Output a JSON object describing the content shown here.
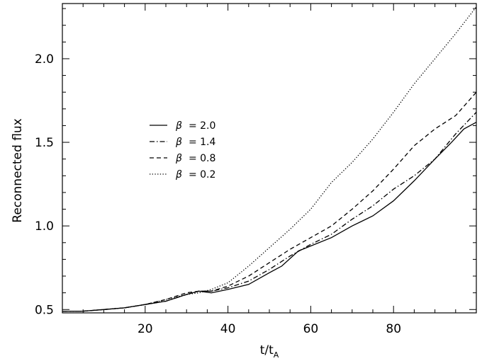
{
  "chart_data": {
    "type": "line",
    "title": "",
    "xlabel": "t/t_A",
    "xlabel_main": "t/t",
    "xlabel_sub": "A",
    "ylabel": "Reconnected flux",
    "xlim": [
      0,
      100
    ],
    "ylim": [
      0.48,
      2.33
    ],
    "xticks": [
      20,
      40,
      60,
      80
    ],
    "yticks": [
      0.5,
      1.0,
      1.5,
      2.0
    ],
    "xtick_labels": [
      "20",
      "40",
      "60",
      "80"
    ],
    "ytick_labels": [
      "0.5",
      "1.0",
      "1.5",
      "2.0"
    ],
    "grid": false,
    "legend_position": "middle-left",
    "series": [
      {
        "name": "β = 2.0",
        "label_symbol": "β",
        "label_value": "= 2.0",
        "style": "solid",
        "points": [
          [
            0,
            0.49
          ],
          [
            5,
            0.49
          ],
          [
            10,
            0.5
          ],
          [
            15,
            0.51
          ],
          [
            20,
            0.53
          ],
          [
            25,
            0.55
          ],
          [
            30,
            0.59
          ],
          [
            33,
            0.61
          ],
          [
            36,
            0.6
          ],
          [
            40,
            0.62
          ],
          [
            45,
            0.65
          ],
          [
            50,
            0.72
          ],
          [
            53,
            0.76
          ],
          [
            57,
            0.85
          ],
          [
            60,
            0.88
          ],
          [
            65,
            0.93
          ],
          [
            70,
            1.0
          ],
          [
            75,
            1.06
          ],
          [
            80,
            1.15
          ],
          [
            85,
            1.27
          ],
          [
            90,
            1.4
          ],
          [
            94,
            1.5
          ],
          [
            97,
            1.58
          ],
          [
            100,
            1.62
          ]
        ]
      },
      {
        "name": "β = 1.4",
        "label_symbol": "β",
        "label_value": "= 1.4",
        "style": "dashdot",
        "points": [
          [
            0,
            0.49
          ],
          [
            5,
            0.49
          ],
          [
            10,
            0.5
          ],
          [
            15,
            0.51
          ],
          [
            20,
            0.53
          ],
          [
            25,
            0.55
          ],
          [
            30,
            0.59
          ],
          [
            33,
            0.61
          ],
          [
            36,
            0.61
          ],
          [
            40,
            0.63
          ],
          [
            45,
            0.67
          ],
          [
            50,
            0.74
          ],
          [
            55,
            0.82
          ],
          [
            60,
            0.89
          ],
          [
            65,
            0.95
          ],
          [
            70,
            1.04
          ],
          [
            75,
            1.12
          ],
          [
            80,
            1.22
          ],
          [
            85,
            1.3
          ],
          [
            90,
            1.4
          ],
          [
            95,
            1.55
          ],
          [
            100,
            1.68
          ]
        ]
      },
      {
        "name": "β = 0.8",
        "label_symbol": "β",
        "label_value": "= 0.8",
        "style": "dashed",
        "points": [
          [
            0,
            0.49
          ],
          [
            5,
            0.49
          ],
          [
            10,
            0.5
          ],
          [
            15,
            0.51
          ],
          [
            20,
            0.53
          ],
          [
            25,
            0.56
          ],
          [
            30,
            0.6
          ],
          [
            33,
            0.61
          ],
          [
            36,
            0.61
          ],
          [
            40,
            0.64
          ],
          [
            45,
            0.7
          ],
          [
            50,
            0.78
          ],
          [
            55,
            0.86
          ],
          [
            60,
            0.93
          ],
          [
            65,
            1.0
          ],
          [
            70,
            1.1
          ],
          [
            75,
            1.21
          ],
          [
            80,
            1.34
          ],
          [
            85,
            1.48
          ],
          [
            90,
            1.58
          ],
          [
            95,
            1.66
          ],
          [
            100,
            1.8
          ]
        ]
      },
      {
        "name": "β = 0.2",
        "label_symbol": "β",
        "label_value": "= 0.2",
        "style": "dotted",
        "points": [
          [
            0,
            0.49
          ],
          [
            5,
            0.49
          ],
          [
            10,
            0.5
          ],
          [
            15,
            0.51
          ],
          [
            20,
            0.53
          ],
          [
            25,
            0.56
          ],
          [
            30,
            0.59
          ],
          [
            33,
            0.6
          ],
          [
            36,
            0.62
          ],
          [
            40,
            0.66
          ],
          [
            45,
            0.76
          ],
          [
            50,
            0.87
          ],
          [
            55,
            0.98
          ],
          [
            60,
            1.1
          ],
          [
            65,
            1.26
          ],
          [
            70,
            1.38
          ],
          [
            75,
            1.52
          ],
          [
            80,
            1.68
          ],
          [
            85,
            1.85
          ],
          [
            90,
            2.0
          ],
          [
            95,
            2.15
          ],
          [
            100,
            2.31
          ]
        ]
      }
    ]
  }
}
